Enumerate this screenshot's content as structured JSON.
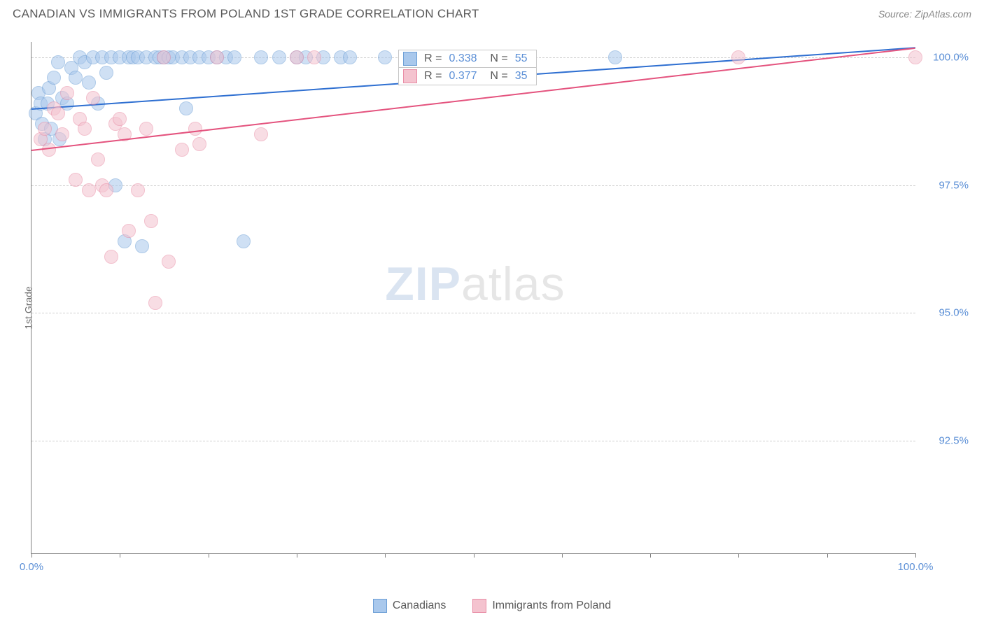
{
  "title": "CANADIAN VS IMMIGRANTS FROM POLAND 1ST GRADE CORRELATION CHART",
  "source": "Source: ZipAtlas.com",
  "chart": {
    "type": "scatter",
    "y_axis_title": "1st Grade",
    "xlim": [
      0,
      100
    ],
    "ylim": [
      90.3,
      100.3
    ],
    "x_ticks": [
      0,
      10,
      20,
      30,
      40,
      50,
      60,
      70,
      80,
      90,
      100
    ],
    "x_tick_labels": {
      "0": "0.0%",
      "100": "100.0%"
    },
    "y_grid": [
      92.5,
      95.0,
      97.5,
      100.0
    ],
    "y_tick_labels": [
      "92.5%",
      "95.0%",
      "97.5%",
      "100.0%"
    ],
    "background_color": "#ffffff",
    "grid_color": "#cfcfcf",
    "axis_color": "#808080",
    "marker_radius": 10,
    "marker_opacity": 0.55,
    "trend_width": 2,
    "series": [
      {
        "name": "Canadians",
        "color_fill": "#a9c8ec",
        "color_stroke": "#6d9fd6",
        "color_line": "#2e6fd1",
        "R": "0.338",
        "N": "55",
        "trend": {
          "x1": 0,
          "y1": 99.0,
          "x2": 100,
          "y2": 100.2
        },
        "points": [
          [
            0.5,
            98.9
          ],
          [
            0.8,
            99.3
          ],
          [
            1,
            99.1
          ],
          [
            1.2,
            98.7
          ],
          [
            1.5,
            98.4
          ],
          [
            1.8,
            99.1
          ],
          [
            2,
            99.4
          ],
          [
            2.2,
            98.6
          ],
          [
            2.5,
            99.6
          ],
          [
            3,
            99.9
          ],
          [
            3.2,
            98.4
          ],
          [
            3.5,
            99.2
          ],
          [
            4,
            99.1
          ],
          [
            4.5,
            99.8
          ],
          [
            5,
            99.6
          ],
          [
            5.5,
            100
          ],
          [
            6,
            99.9
          ],
          [
            6.5,
            99.5
          ],
          [
            7,
            100
          ],
          [
            7.5,
            99.1
          ],
          [
            8,
            100
          ],
          [
            8.5,
            99.7
          ],
          [
            9,
            100
          ],
          [
            9.5,
            97.5
          ],
          [
            10,
            100
          ],
          [
            10.5,
            96.4
          ],
          [
            11,
            100
          ],
          [
            11.5,
            100
          ],
          [
            12,
            100
          ],
          [
            12.5,
            96.3
          ],
          [
            13,
            100
          ],
          [
            14,
            100
          ],
          [
            14.5,
            100
          ],
          [
            15,
            100
          ],
          [
            15.5,
            100
          ],
          [
            16,
            100
          ],
          [
            17,
            100
          ],
          [
            17.5,
            99
          ],
          [
            18,
            100
          ],
          [
            19,
            100
          ],
          [
            20,
            100
          ],
          [
            21,
            100
          ],
          [
            22,
            100
          ],
          [
            23,
            100
          ],
          [
            24,
            96.4
          ],
          [
            26,
            100
          ],
          [
            28,
            100
          ],
          [
            30,
            100
          ],
          [
            31,
            100
          ],
          [
            33,
            100
          ],
          [
            35,
            100
          ],
          [
            36,
            100
          ],
          [
            40,
            100
          ],
          [
            47,
            100
          ],
          [
            66,
            100
          ]
        ]
      },
      {
        "name": "Immigrants from Poland",
        "color_fill": "#f4c3cf",
        "color_stroke": "#e98da6",
        "color_line": "#e4537e",
        "R": "0.377",
        "N": "35",
        "trend": {
          "x1": 0,
          "y1": 98.2,
          "x2": 100,
          "y2": 100.2
        },
        "points": [
          [
            1,
            98.4
          ],
          [
            1.5,
            98.6
          ],
          [
            2,
            98.2
          ],
          [
            2.5,
            99
          ],
          [
            3,
            98.9
          ],
          [
            3.5,
            98.5
          ],
          [
            4,
            99.3
          ],
          [
            5,
            97.6
          ],
          [
            5.5,
            98.8
          ],
          [
            6,
            98.6
          ],
          [
            6.5,
            97.4
          ],
          [
            7,
            99.2
          ],
          [
            7.5,
            98
          ],
          [
            8,
            97.5
          ],
          [
            8.5,
            97.4
          ],
          [
            9,
            96.1
          ],
          [
            9.5,
            98.7
          ],
          [
            10,
            98.8
          ],
          [
            10.5,
            98.5
          ],
          [
            11,
            96.6
          ],
          [
            12,
            97.4
          ],
          [
            13,
            98.6
          ],
          [
            13.5,
            96.8
          ],
          [
            14,
            95.2
          ],
          [
            15,
            100
          ],
          [
            15.5,
            96.0
          ],
          [
            17,
            98.2
          ],
          [
            18.5,
            98.6
          ],
          [
            19,
            98.3
          ],
          [
            21,
            100
          ],
          [
            26,
            98.5
          ],
          [
            30,
            100
          ],
          [
            32,
            100
          ],
          [
            80,
            100
          ],
          [
            100,
            100
          ]
        ]
      }
    ],
    "legend_position": "bottom",
    "stats_box": {
      "left_pct": 41.5,
      "top_y": 100.15
    }
  },
  "watermark": {
    "zip": "ZIP",
    "atlas": "atlas"
  }
}
